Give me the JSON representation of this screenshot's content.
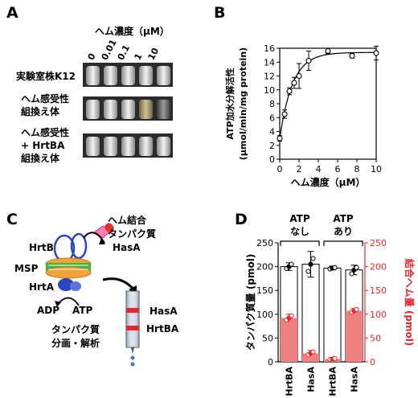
{
  "panels": {
    "A": {
      "letter": "A",
      "concentration_title": "ヘム濃度（μM）",
      "concentrations": [
        "0",
        "0.01",
        "0.1",
        "1",
        "10"
      ],
      "rows": [
        {
          "label_lines": [
            "実験室株K12"
          ]
        },
        {
          "label_lines": [
            "ヘム感受性",
            "組換え体"
          ]
        },
        {
          "label_lines": [
            "ヘム感受性",
            "+ HrtBA",
            "組換え体"
          ]
        }
      ]
    },
    "B": {
      "letter": "B"
    },
    "C": {
      "letter": "C",
      "labels": {
        "heme_binding_protein_line1": "ヘム結合",
        "heme_binding_protein_line2": "タンパク質",
        "hasa_top": "HasA",
        "hrtb": "HrtB",
        "msp": "MSP",
        "hrta": "HrtA",
        "adp": "ADP",
        "atp": "ATP",
        "hasa_column": "HasA",
        "hrtba_column": "HrtBA",
        "fraction_line1": "タンパク質",
        "fraction_line2": "分画・解析"
      }
    },
    "D": {
      "letter": "D"
    }
  },
  "chart_data": [
    {
      "type": "scatter",
      "panel": "B",
      "xlabel": "ヘム濃度（μM）",
      "ylabel_lines": [
        "ATP加水分解活性",
        "(μmol/min/mg protein)"
      ],
      "xlim": [
        0,
        10
      ],
      "ylim": [
        0,
        16
      ],
      "xticks": [
        0,
        2,
        4,
        6,
        8,
        10
      ],
      "yticks": [
        0,
        2,
        4,
        6,
        8,
        10,
        12,
        14,
        16
      ],
      "points": [
        {
          "x": 0,
          "y": 3.0,
          "err": 0.4
        },
        {
          "x": 0.5,
          "y": 6.5,
          "err": 0.6
        },
        {
          "x": 1.0,
          "y": 9.8,
          "err": 0.5
        },
        {
          "x": 1.5,
          "y": 11.0,
          "err": 0.8
        },
        {
          "x": 2.0,
          "y": 12.0,
          "err": 1.8
        },
        {
          "x": 3.0,
          "y": 14.2,
          "err": 1.4
        },
        {
          "x": 5.0,
          "y": 15.6,
          "err": 0.4
        },
        {
          "x": 7.5,
          "y": 14.9,
          "err": 0.3
        },
        {
          "x": 10.0,
          "y": 15.3,
          "err": 1.0
        }
      ],
      "fit_curve": true,
      "grid": false
    },
    {
      "type": "bar",
      "panel": "D",
      "categories": [
        "HrtBA",
        "HasA",
        "HrtBA",
        "HasA"
      ],
      "groups": [
        {
          "label_lines": [
            "ATP",
            "なし"
          ],
          "categories": [
            0,
            1
          ]
        },
        {
          "label_lines": [
            "ATP",
            "あり"
          ],
          "categories": [
            2,
            3
          ]
        }
      ],
      "series": [
        {
          "axis": "left",
          "values": [
            200,
            205,
            197,
            193
          ],
          "errors": [
            8,
            27,
            4,
            10
          ],
          "points": [
            [
              196,
              200,
              205
            ],
            [
              190,
              205,
              217
            ],
            [
              195,
              197,
              198
            ],
            [
              185,
              193,
              198
            ]
          ]
        },
        {
          "axis": "right",
          "values": [
            92,
            18,
            6,
            107
          ],
          "errors": [
            8,
            6,
            2,
            5
          ],
          "points": [
            [
              88,
              92,
              97
            ],
            [
              15,
              18,
              21
            ],
            [
              5,
              6,
              7
            ],
            [
              104,
              107,
              110
            ]
          ]
        }
      ],
      "ylabel_left": "タンパク質量 (pmol)",
      "ylabel_right": "結合ヘム量 (pmol)",
      "ylim_left": [
        0,
        250
      ],
      "ylim_right": [
        0,
        250
      ],
      "yticks": [
        0,
        50,
        100,
        150,
        200,
        250
      ],
      "colors": {
        "protein_bar": "#ffffff",
        "heme_bar": "#f08080",
        "heme_axis": "#e8262a",
        "heme_point": "#e8262a"
      }
    }
  ]
}
